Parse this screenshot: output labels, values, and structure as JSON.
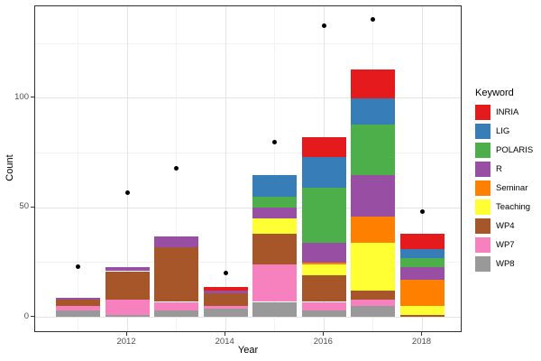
{
  "colors": {
    "background": "#ffffff",
    "panel_background": "#ffffff",
    "panel_border": "#2f2f2f",
    "gridline_major": "#e4e4e4",
    "gridline_minor": "#f2f2f2",
    "tick": "#333333",
    "tick_label": "#4d4d4d",
    "point": "#000000"
  },
  "chart_data": {
    "type": "bar",
    "subtype": "stacked-bars-with-scatter-points",
    "title": "",
    "xlabel": "Year",
    "ylabel": "Count",
    "legend_title": "Keyword",
    "legend_position": "right",
    "grid": "on",
    "years": [
      2011,
      2012,
      2013,
      2014,
      2015,
      2016,
      2017,
      2018
    ],
    "x_ticks": [
      2012,
      2014,
      2016,
      2018
    ],
    "x_tick_labels": [
      "2012",
      "2014",
      "2016",
      "2018"
    ],
    "y_ticks": [
      0,
      50,
      100
    ],
    "y_tick_labels": [
      "0",
      "50",
      "100"
    ],
    "y_minor_gridlines": [
      25,
      75,
      125
    ],
    "ylim": [
      -7,
      142
    ],
    "series": [
      {
        "name": "INRIA",
        "color": "#E41A1C",
        "values": [
          0,
          0,
          0,
          2,
          0,
          9,
          13,
          7
        ]
      },
      {
        "name": "LIG",
        "color": "#377EB8",
        "values": [
          0,
          0,
          0,
          0,
          10,
          14,
          12,
          4
        ]
      },
      {
        "name": "POLARIS",
        "color": "#4DAF4A",
        "values": [
          0,
          0,
          0,
          0,
          5,
          25,
          23,
          4
        ]
      },
      {
        "name": "R",
        "color": "#984EA3",
        "values": [
          1,
          2,
          5,
          1,
          5,
          9,
          19,
          6
        ]
      },
      {
        "name": "Seminar",
        "color": "#FF7F00",
        "values": [
          0,
          0,
          0,
          0,
          0,
          1,
          12,
          12
        ]
      },
      {
        "name": "Teaching",
        "color": "#FFFF33",
        "values": [
          0,
          0,
          0,
          0,
          7,
          5,
          22,
          4
        ]
      },
      {
        "name": "WP4",
        "color": "#A65628",
        "values": [
          3,
          13,
          25,
          6,
          14,
          12,
          4,
          1
        ]
      },
      {
        "name": "WP7",
        "color": "#F781BF",
        "values": [
          2,
          7,
          4,
          1,
          17,
          4,
          3,
          0
        ]
      },
      {
        "name": "WP8",
        "color": "#999999",
        "values": [
          3,
          1,
          3,
          4,
          7,
          3,
          5,
          0
        ]
      }
    ],
    "stack_order_bottom_to_top": [
      "WP8",
      "WP7",
      "WP4",
      "Teaching",
      "Seminar",
      "R",
      "POLARIS",
      "LIG",
      "INRIA"
    ],
    "bar_totals": [
      9,
      23,
      37,
      14,
      65,
      82,
      113,
      38
    ],
    "points": {
      "name": "black-dots",
      "color": "#000000",
      "values": [
        23,
        57,
        68,
        20,
        80,
        133,
        136,
        48
      ]
    }
  }
}
